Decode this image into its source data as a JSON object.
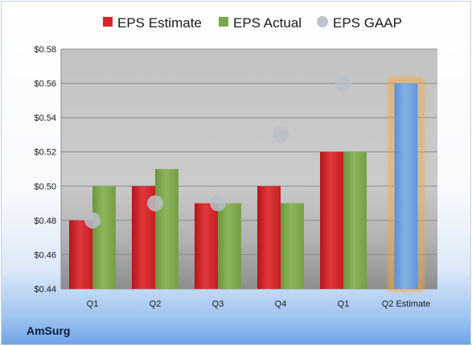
{
  "company": "AmSurg",
  "colors": {
    "estimate": "#d9262a",
    "actual": "#7ca64a",
    "gaap": "#b9c0c9",
    "forecast": "#6f9fd8",
    "forecast_glow": "#f5a640"
  },
  "chart_data": {
    "type": "bar",
    "categories": [
      "Q1",
      "Q2",
      "Q3",
      "Q4",
      "Q1",
      "Q2 Estimate"
    ],
    "series": [
      {
        "name": "EPS Estimate",
        "values": [
          0.48,
          0.5,
          0.49,
          0.5,
          0.52,
          null
        ]
      },
      {
        "name": "EPS Actual",
        "values": [
          0.5,
          0.51,
          0.49,
          0.49,
          0.52,
          null
        ]
      },
      {
        "name": "EPS GAAP",
        "values": [
          0.48,
          0.49,
          0.49,
          0.53,
          0.56,
          null
        ]
      }
    ],
    "forecast": {
      "category": "Q2 Estimate",
      "value": 0.56
    },
    "ylim": [
      0.44,
      0.58
    ],
    "yticks": [
      "$0.44",
      "$0.46",
      "$0.48",
      "$0.50",
      "$0.52",
      "$0.54",
      "$0.56",
      "$0.58"
    ],
    "ytick_values": [
      0.44,
      0.46,
      0.48,
      0.5,
      0.52,
      0.54,
      0.56,
      0.58
    ],
    "grid": true,
    "legend_position": "top",
    "title": "",
    "xlabel": "",
    "ylabel": ""
  }
}
